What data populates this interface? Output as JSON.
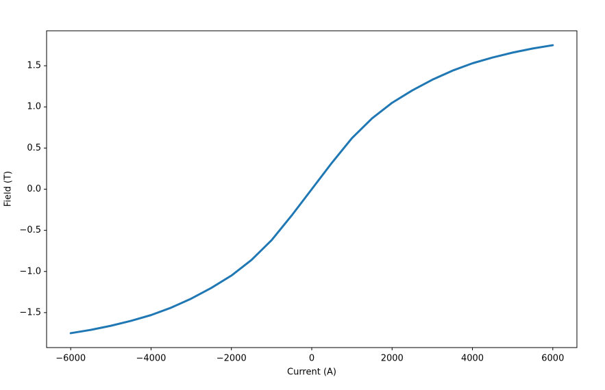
{
  "chart_data": {
    "type": "line",
    "x_label": "Current (A)",
    "y_label": "Field (T)",
    "x": [
      -6000,
      -5500,
      -5000,
      -4500,
      -4000,
      -3500,
      -3000,
      -2500,
      -2000,
      -1500,
      -1000,
      -500,
      0,
      500,
      1000,
      1500,
      2000,
      2500,
      3000,
      3500,
      4000,
      4500,
      5000,
      5500,
      6000
    ],
    "values": [
      -1.75,
      -1.71,
      -1.66,
      -1.6,
      -1.53,
      -1.44,
      -1.33,
      -1.2,
      -1.05,
      -0.86,
      -0.62,
      -0.32,
      0.0,
      0.32,
      0.62,
      0.86,
      1.05,
      1.2,
      1.33,
      1.44,
      1.53,
      1.6,
      1.66,
      1.71,
      1.75
    ],
    "color": "#1f77b4",
    "xlim": [
      -6600,
      6600
    ],
    "xticks": [
      {
        "value": -6000,
        "label": "−6000"
      },
      {
        "value": -4000,
        "label": "−4000"
      },
      {
        "value": -2000,
        "label": "−2000"
      },
      0,
      2000,
      4000,
      6000
    ],
    "ylim": [
      -1.925,
      1.925
    ],
    "yticks": [
      {
        "value": -1.5,
        "label": "−1.5"
      },
      {
        "value": -1.0,
        "label": "−1.0"
      },
      {
        "value": -0.5,
        "label": "−0.5"
      },
      {
        "value": 0.0,
        "label": "0.0"
      },
      0.5,
      {
        "value": 1.0,
        "label": "1.0"
      },
      1.5
    ],
    "grid": false
  }
}
